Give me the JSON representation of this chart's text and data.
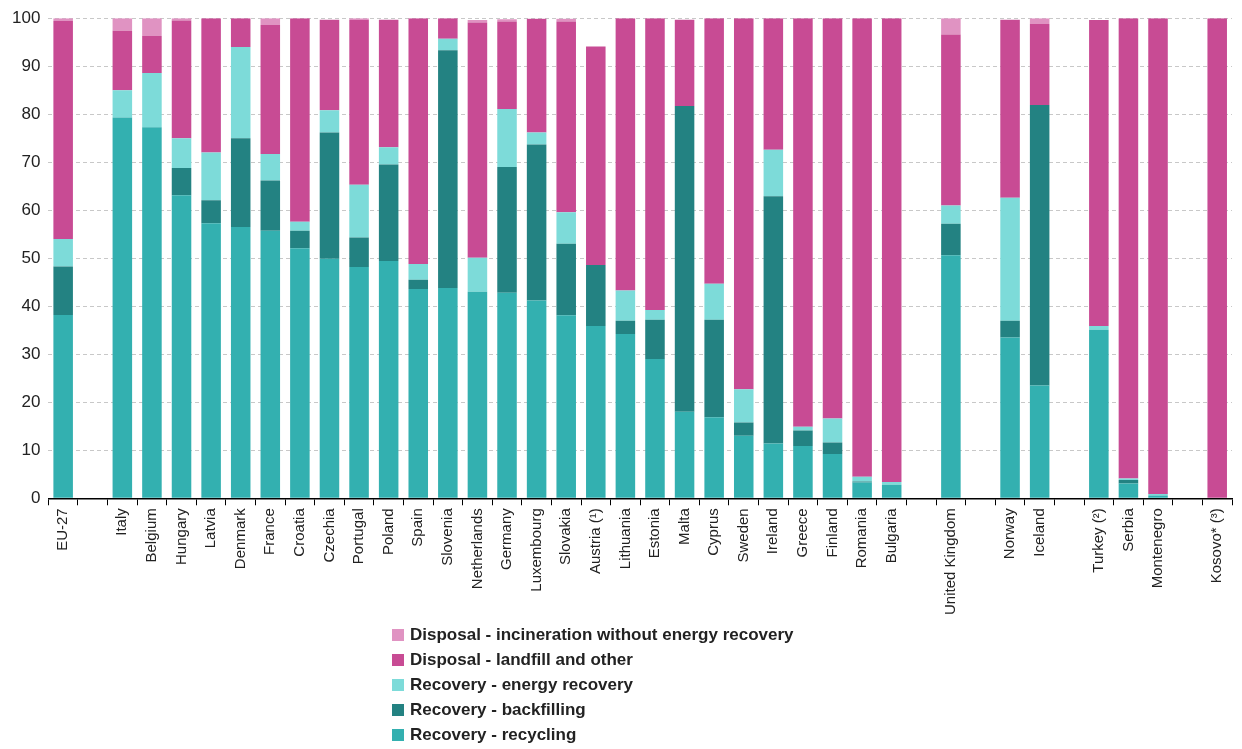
{
  "chart_data": {
    "type": "bar",
    "stacked": true,
    "categories": [
      "EU-27",
      null,
      "Italy",
      "Belgium",
      "Hungary",
      "Latvia",
      "Denmark",
      "France",
      "Croatia",
      "Czechia",
      "Portugal",
      "Poland",
      "Spain",
      "Slovenia",
      "Netherlands",
      "Germany",
      "Luxembourg",
      "Slovakia",
      "Austria (¹)",
      "Lithuania",
      "Estonia",
      "Malta",
      "Cyprus",
      "Sweden",
      "Ireland",
      "Greece",
      "Finland",
      "Romania",
      "Bulgaria",
      null,
      "United Kingdom",
      null,
      "Norway",
      "Iceland",
      null,
      "Turkey (²)",
      "Serbia",
      "Montenegro",
      null,
      "Kosovo* (³)"
    ],
    "series": [
      {
        "name": "Recovery - recycling",
        "color": "#33b0b0",
        "values": [
          38.2,
          null,
          79.3,
          77.3,
          63.1,
          57.3,
          56.5,
          55.7,
          52.1,
          49.9,
          48.2,
          49.4,
          43.6,
          43.8,
          43.0,
          42.8,
          41.2,
          38.1,
          35.9,
          34.2,
          29.0,
          18.0,
          16.9,
          13.0,
          11.4,
          10.9,
          9.2,
          3.3,
          2.8,
          null,
          50.6,
          null,
          33.5,
          23.5,
          null,
          35.1,
          3.1,
          0.6,
          null,
          0
        ]
      },
      {
        "name": "Recovery - backfilling",
        "color": "#238282",
        "values": [
          10.1,
          null,
          0,
          0,
          5.7,
          4.8,
          18.5,
          10.5,
          3.6,
          26.3,
          6.1,
          20.1,
          1.9,
          49.5,
          0,
          26.2,
          32.5,
          14.9,
          12.7,
          2.8,
          8.2,
          63.7,
          20.3,
          2.8,
          51.5,
          3.2,
          2.4,
          0.2,
          0,
          null,
          6.6,
          null,
          3.5,
          58.4,
          null,
          0,
          0.7,
          0,
          null,
          0
        ]
      },
      {
        "name": "Recovery - energy recovery",
        "color": "#7ddbd9",
        "values": [
          5.7,
          null,
          5.7,
          11.3,
          6.2,
          9.9,
          19.0,
          5.5,
          1.9,
          4.6,
          11.0,
          3.6,
          3.3,
          2.4,
          7.1,
          12.1,
          2.5,
          6.6,
          0,
          6.3,
          2.0,
          0,
          7.5,
          6.9,
          9.7,
          0.8,
          5.0,
          1.0,
          0.6,
          null,
          3.8,
          null,
          25.6,
          0,
          null,
          0.8,
          0.3,
          0.3,
          null,
          0
        ]
      },
      {
        "name": "Disposal - landfill and other",
        "color": "#c84b94",
        "values": [
          45.4,
          null,
          12.4,
          7.7,
          24.5,
          28.0,
          6.0,
          26.9,
          42.4,
          18.9,
          34.3,
          26.6,
          51.2,
          4.3,
          49.0,
          18.2,
          23.7,
          39.7,
          45.5,
          56.7,
          60.8,
          18.0,
          55.3,
          77.3,
          27.4,
          85.1,
          83.4,
          95.5,
          96.6,
          null,
          35.6,
          null,
          37.1,
          16.9,
          null,
          63.7,
          95.9,
          99.1,
          null,
          100
        ]
      },
      {
        "name": "Disposal - incineration without energy recovery",
        "color": "#e093c2",
        "values": [
          0.6,
          null,
          2.6,
          3.7,
          0.5,
          0,
          0,
          1.4,
          0,
          0,
          0.4,
          0,
          0,
          0,
          0.5,
          0.5,
          0,
          0.6,
          0,
          0,
          0,
          0,
          0,
          0,
          0,
          0,
          0,
          0,
          0,
          null,
          3.4,
          null,
          0,
          1.2,
          null,
          0,
          0,
          0,
          null,
          0
        ]
      }
    ],
    "ylim": [
      0,
      100
    ],
    "yticks": [
      0,
      10,
      20,
      30,
      40,
      50,
      60,
      70,
      80,
      90,
      100
    ],
    "grid": "y",
    "legend": "bottom"
  }
}
